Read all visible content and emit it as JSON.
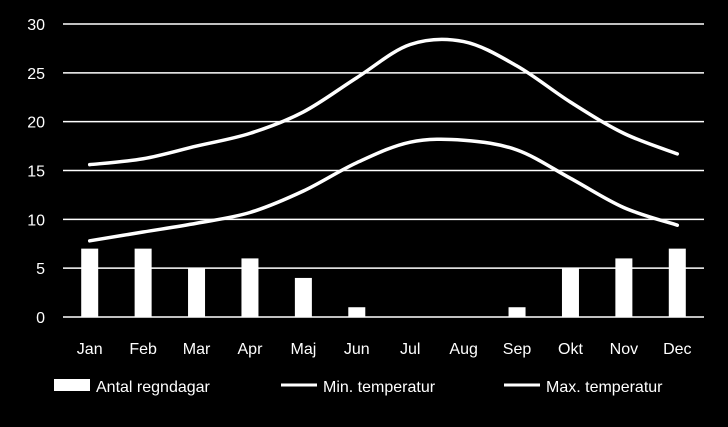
{
  "chart_data": {
    "type": "bar",
    "categories": [
      "Jan",
      "Feb",
      "Mar",
      "Apr",
      "Maj",
      "Jun",
      "Jul",
      "Aug",
      "Sep",
      "Okt",
      "Nov",
      "Dec"
    ],
    "series": [
      {
        "name": "Antal regndagar",
        "type": "bar",
        "values": [
          7,
          7,
          5,
          6,
          4,
          1,
          0,
          0,
          1,
          5,
          6,
          7
        ]
      },
      {
        "name": "Min. temperatur",
        "type": "line",
        "values": [
          7.8,
          8.7,
          9.6,
          10.7,
          12.9,
          15.8,
          17.9,
          18.1,
          17.1,
          14.2,
          11.2,
          9.4
        ]
      },
      {
        "name": "Max. temperatur",
        "type": "line",
        "values": [
          15.6,
          16.2,
          17.5,
          18.8,
          21.0,
          24.5,
          27.9,
          28.2,
          25.7,
          22.0,
          18.8,
          16.7
        ]
      }
    ],
    "yticks": [
      0,
      5,
      10,
      15,
      20,
      25,
      30
    ],
    "ylim": [
      0,
      30
    ],
    "grid": true,
    "legend": "bottom",
    "colors": {
      "background": "#000000",
      "marks": "#ffffff"
    }
  }
}
